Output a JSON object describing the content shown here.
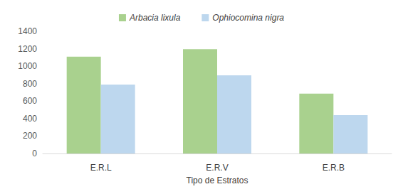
{
  "chart_data": {
    "type": "bar",
    "categories": [
      "E.R.L",
      "E.R.V",
      "E.R.B"
    ],
    "series": [
      {
        "name": "Arbacia lixula",
        "color": "#a9d18e",
        "values": [
          1110,
          1195,
          685
        ]
      },
      {
        "name": "Ophiocomina nigra",
        "color": "#bdd7ee",
        "values": [
          790,
          895,
          440
        ]
      }
    ],
    "xlabel": "Tipo de Estratos",
    "ylim": [
      0,
      1400
    ],
    "yticks": [
      0,
      200,
      400,
      600,
      800,
      1000,
      1200,
      1400
    ],
    "grid": false,
    "legend": "top"
  }
}
